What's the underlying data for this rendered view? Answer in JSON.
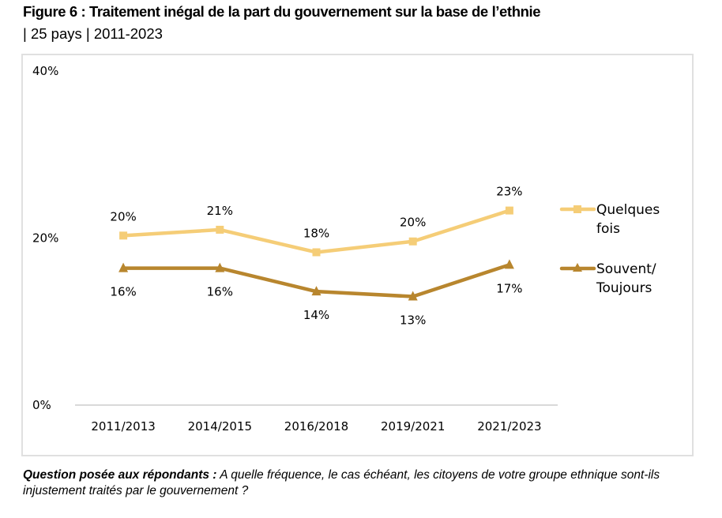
{
  "header": {
    "title": "Figure 6 : Traitement inégal de la part du gouvernement sur la base de l’ethnie",
    "subtitle": "| 25 pays | 2011-2023"
  },
  "footer": {
    "question_label": "Question posée aux répondants :",
    "question_text": " A quelle fréquence, le cas échéant, les citoyens de votre groupe ethnique sont-ils injustement traités par le gouvernement ?"
  },
  "chart_data": {
    "type": "line",
    "title": "Traitement inégal de la part du gouvernement sur la base de l’ethnie",
    "xlabel": "",
    "ylabel": "",
    "categories": [
      "2011/2013",
      "2014/2015",
      "2016/2018",
      "2019/2021",
      "2021/2023"
    ],
    "ylim": [
      0,
      40
    ],
    "yticks": [
      0,
      20,
      40
    ],
    "ytick_labels": [
      "0%",
      "20%",
      "40%"
    ],
    "grid": false,
    "legend_position": "right",
    "series": [
      {
        "name": "Quelques fois",
        "legend_lines": [
          "Quelques",
          "fois"
        ],
        "marker": "square",
        "color": "#F5CD77",
        "values": [
          20.3,
          21.0,
          18.3,
          19.6,
          23.3
        ],
        "labels": [
          "20%",
          "21%",
          "18%",
          "20%",
          "23%"
        ],
        "label_position": "above"
      },
      {
        "name": "Souvent/ Toujours",
        "legend_lines": [
          "Souvent/",
          "Toujours"
        ],
        "marker": "triangle",
        "color": "#B8862E",
        "values": [
          16.4,
          16.4,
          13.6,
          13.0,
          16.8
        ],
        "labels": [
          "16%",
          "16%",
          "14%",
          "13%",
          "17%"
        ],
        "label_position": "below"
      }
    ]
  }
}
